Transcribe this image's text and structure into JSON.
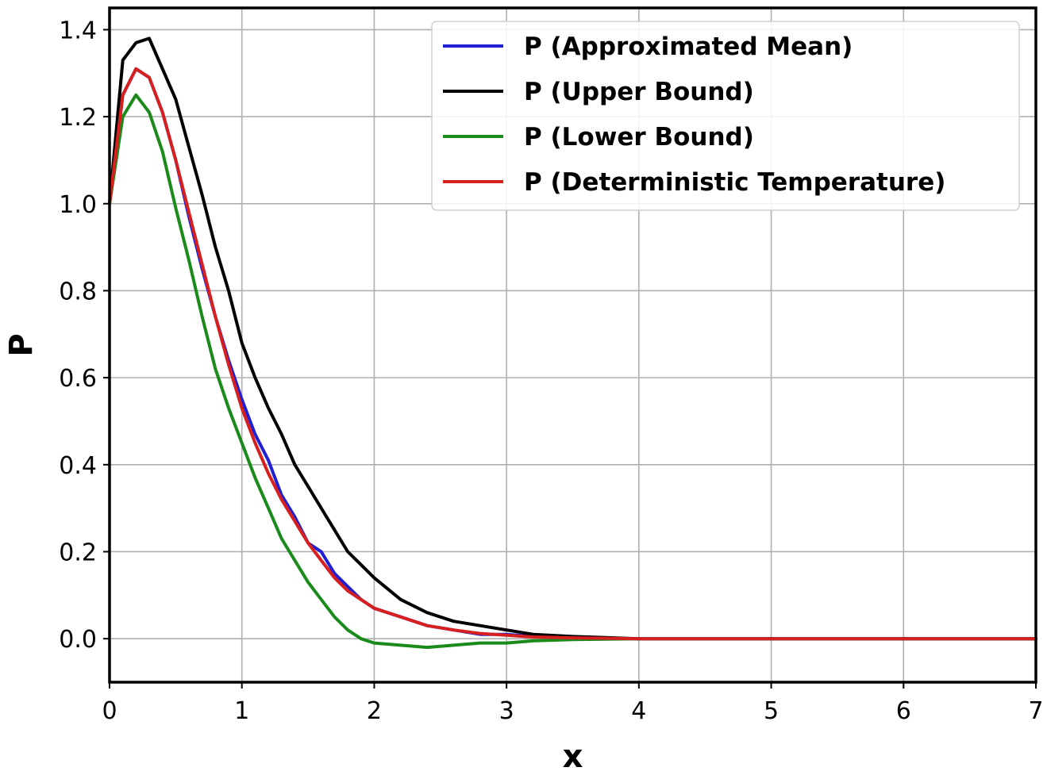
{
  "chart_data": {
    "type": "line",
    "xlabel": "x",
    "ylabel": "P",
    "xlim": [
      0,
      7
    ],
    "ylim": [
      -0.1,
      1.45
    ],
    "xticks": [
      0,
      1,
      2,
      3,
      4,
      5,
      6,
      7
    ],
    "xtick_labels": [
      "0",
      "1",
      "2",
      "3",
      "4",
      "5",
      "6",
      "7"
    ],
    "yticks": [
      0.0,
      0.2,
      0.4,
      0.6,
      0.8,
      1.0,
      1.2,
      1.4
    ],
    "ytick_labels": [
      "0.0",
      "0.2",
      "0.4",
      "0.6",
      "0.8",
      "1.0",
      "1.2",
      "1.4"
    ],
    "grid": true,
    "legend_position": "top-right",
    "series": [
      {
        "name": "P (Approximated Mean)",
        "color": "#1f1fd6",
        "x": [
          0,
          0.1,
          0.2,
          0.3,
          0.4,
          0.5,
          0.6,
          0.7,
          0.8,
          0.9,
          1.0,
          1.1,
          1.2,
          1.3,
          1.4,
          1.5,
          1.6,
          1.7,
          1.8,
          1.9,
          2.0,
          2.2,
          2.4,
          2.6,
          2.8,
          3.0,
          3.2,
          3.5,
          4.0,
          5.0,
          6.0,
          7.0
        ],
        "y": [
          1.0,
          1.25,
          1.31,
          1.29,
          1.21,
          1.1,
          0.97,
          0.85,
          0.74,
          0.64,
          0.55,
          0.47,
          0.41,
          0.33,
          0.28,
          0.22,
          0.2,
          0.15,
          0.12,
          0.09,
          0.07,
          0.05,
          0.03,
          0.02,
          0.01,
          0.01,
          0.005,
          0.002,
          0.0,
          0.0,
          0.0,
          0.0
        ]
      },
      {
        "name": "P (Upper Bound)",
        "color": "#000000",
        "x": [
          0,
          0.1,
          0.2,
          0.3,
          0.4,
          0.5,
          0.6,
          0.7,
          0.8,
          0.9,
          1.0,
          1.1,
          1.2,
          1.3,
          1.4,
          1.5,
          1.6,
          1.7,
          1.8,
          1.9,
          2.0,
          2.2,
          2.4,
          2.6,
          2.8,
          3.0,
          3.2,
          3.5,
          4.0,
          5.0,
          6.0,
          7.0
        ],
        "y": [
          1.0,
          1.33,
          1.37,
          1.38,
          1.31,
          1.24,
          1.13,
          1.02,
          0.9,
          0.8,
          0.68,
          0.6,
          0.53,
          0.47,
          0.4,
          0.35,
          0.3,
          0.25,
          0.2,
          0.17,
          0.14,
          0.09,
          0.06,
          0.04,
          0.03,
          0.02,
          0.01,
          0.005,
          0.0,
          0.0,
          0.0,
          0.0
        ]
      },
      {
        "name": "P (Lower Bound)",
        "color": "#1a8a1a",
        "x": [
          0,
          0.1,
          0.2,
          0.3,
          0.4,
          0.5,
          0.6,
          0.7,
          0.8,
          0.9,
          1.0,
          1.1,
          1.2,
          1.3,
          1.4,
          1.5,
          1.6,
          1.7,
          1.8,
          1.9,
          2.0,
          2.2,
          2.4,
          2.6,
          2.8,
          3.0,
          3.2,
          3.5,
          4.0,
          5.0,
          6.0,
          7.0
        ],
        "y": [
          1.0,
          1.2,
          1.25,
          1.21,
          1.12,
          0.99,
          0.87,
          0.74,
          0.62,
          0.53,
          0.45,
          0.37,
          0.3,
          0.23,
          0.18,
          0.13,
          0.09,
          0.05,
          0.02,
          0.0,
          -0.01,
          -0.015,
          -0.02,
          -0.015,
          -0.01,
          -0.01,
          -0.005,
          -0.002,
          0.0,
          0.0,
          0.0,
          0.0
        ]
      },
      {
        "name": "P (Deterministic Temperature)",
        "color": "#d62020",
        "x": [
          0,
          0.1,
          0.2,
          0.3,
          0.4,
          0.5,
          0.6,
          0.7,
          0.8,
          0.9,
          1.0,
          1.1,
          1.2,
          1.3,
          1.4,
          1.5,
          1.6,
          1.7,
          1.8,
          1.9,
          2.0,
          2.2,
          2.4,
          2.6,
          2.8,
          3.0,
          3.2,
          3.5,
          4.0,
          5.0,
          6.0,
          7.0
        ],
        "y": [
          1.0,
          1.25,
          1.31,
          1.29,
          1.21,
          1.1,
          0.98,
          0.86,
          0.74,
          0.63,
          0.53,
          0.45,
          0.38,
          0.32,
          0.27,
          0.22,
          0.18,
          0.14,
          0.11,
          0.09,
          0.07,
          0.05,
          0.03,
          0.02,
          0.012,
          0.008,
          0.004,
          0.002,
          0.0,
          0.0,
          0.0,
          0.0
        ]
      }
    ]
  }
}
